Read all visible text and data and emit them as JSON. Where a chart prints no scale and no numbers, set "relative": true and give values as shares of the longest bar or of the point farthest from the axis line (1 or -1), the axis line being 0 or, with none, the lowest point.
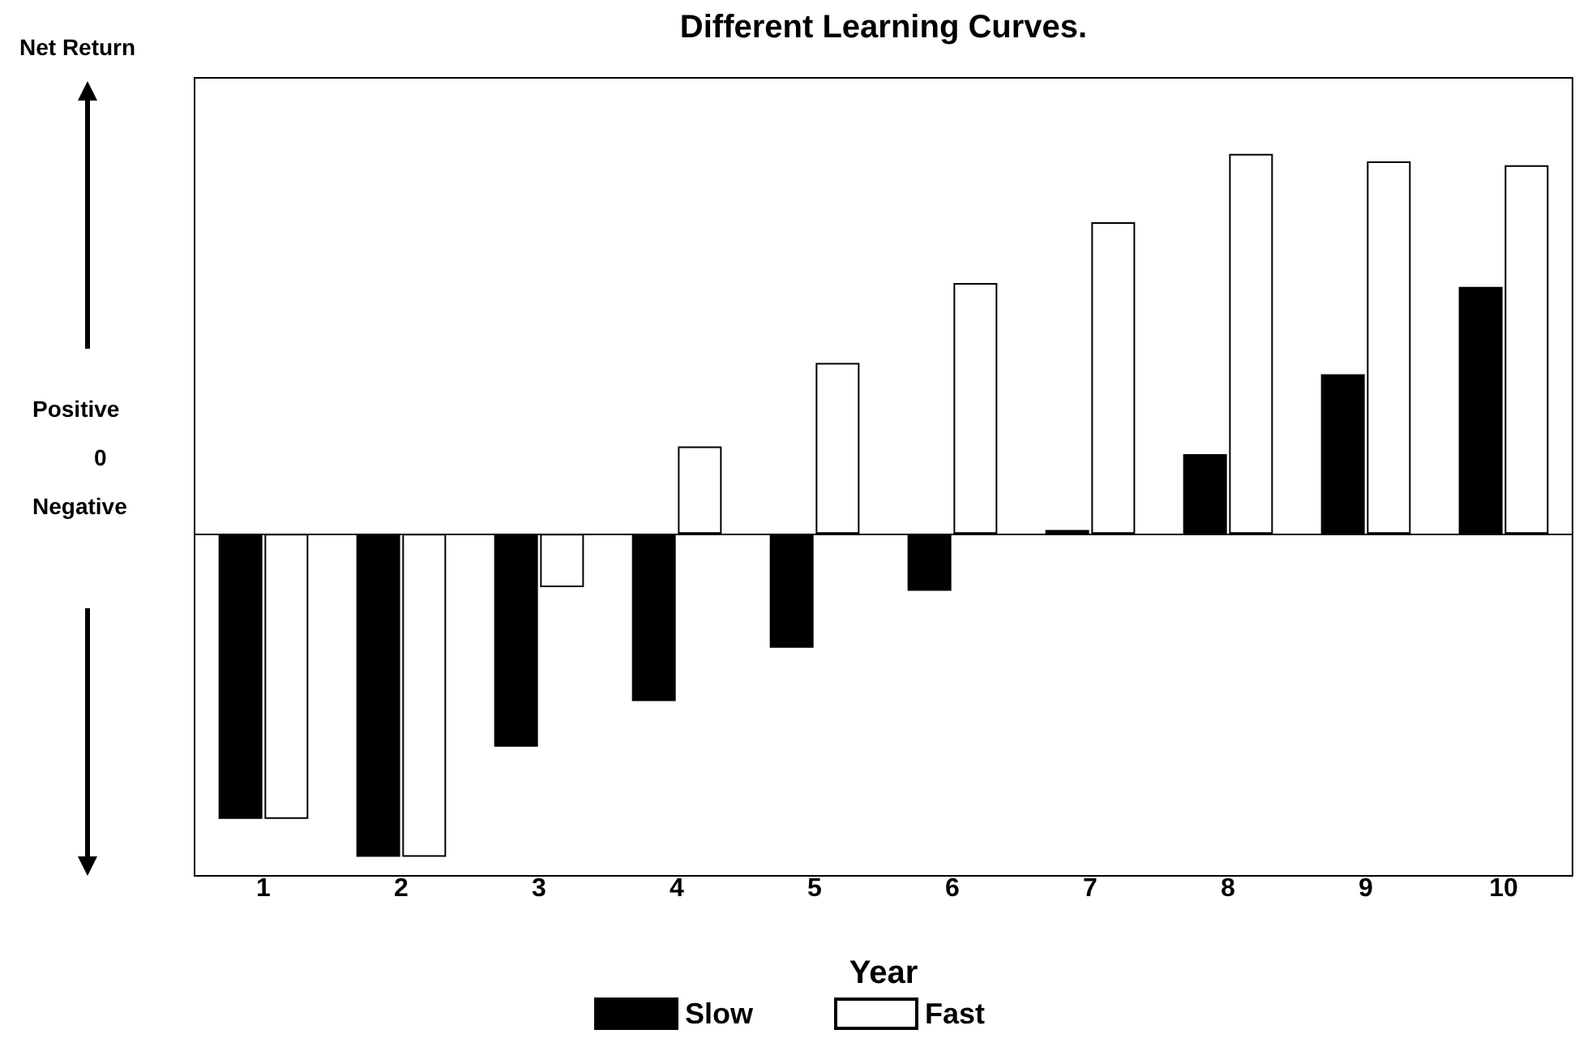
{
  "chart_data": {
    "type": "bar",
    "title": "Different Learning Curves.",
    "xlabel": "Year",
    "ylabel": "Net Return",
    "relative": true,
    "categories": [
      "1",
      "2",
      "3",
      "4",
      "5",
      "6",
      "7",
      "8",
      "9",
      "10"
    ],
    "series": [
      {
        "name": "Slow",
        "color": "#000000",
        "values": [
          -0.75,
          -0.85,
          -0.56,
          -0.44,
          -0.3,
          -0.15,
          0.01,
          0.21,
          0.42,
          0.65
        ]
      },
      {
        "name": "Fast",
        "color": "#ffffff",
        "values": [
          -0.75,
          -0.85,
          -0.14,
          0.23,
          0.45,
          0.66,
          0.82,
          1.0,
          0.98,
          0.97
        ]
      }
    ],
    "annotations": [
      "Positive",
      "0",
      "Negative"
    ],
    "legend": "bottom"
  }
}
